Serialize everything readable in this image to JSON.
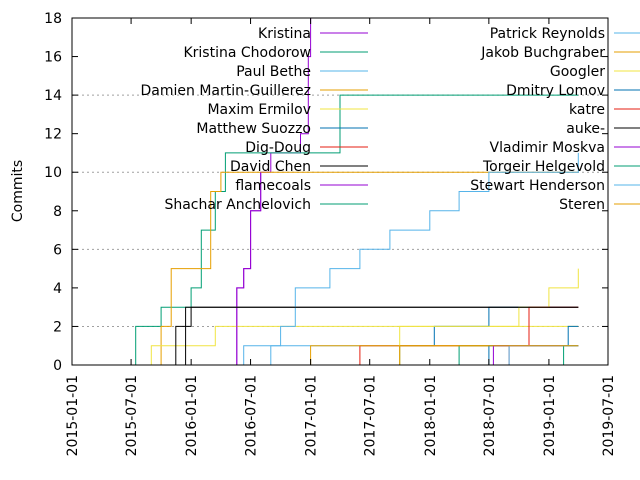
{
  "chart_data": {
    "type": "line",
    "title": "",
    "xlabel": "",
    "ylabel": "Commits",
    "x_type": "date",
    "xlim": [
      "2015-01-01",
      "2019-07-01"
    ],
    "ylim": [
      0,
      18
    ],
    "x_ticks": [
      "2015-01-01",
      "2015-07-01",
      "2016-01-01",
      "2016-07-01",
      "2017-01-01",
      "2017-07-01",
      "2018-01-01",
      "2018-07-01",
      "2019-01-01",
      "2019-07-01"
    ],
    "y_ticks": [
      0,
      2,
      4,
      6,
      8,
      10,
      12,
      14,
      16,
      18
    ],
    "grid": "horizontal dotted lines at 2, 6, 10, 14",
    "legend": "top, two columns",
    "series": [
      {
        "name": "Kristina",
        "color": "#9400d3",
        "x": [
          "2016-05-01",
          "2016-05-20",
          "2016-06-10",
          "2016-07-01",
          "2016-08-01",
          "2016-09-01",
          "2016-10-15",
          "2016-12-01",
          "2016-12-25",
          "2017-01-01"
        ],
        "y": [
          0,
          4,
          5,
          8,
          10,
          11,
          11,
          12,
          16,
          18
        ]
      },
      {
        "name": "Kristina Chodorow",
        "color": "#009e73",
        "x": [
          "2015-07-01",
          "2015-07-15",
          "2015-09-20",
          "2015-10-01",
          "2016-01-01",
          "2016-02-01",
          "2016-03-15",
          "2016-04-15",
          "2016-12-01",
          "2017-04-01",
          "2019-04-01"
        ],
        "y": [
          0,
          2,
          2,
          3,
          4,
          7,
          9,
          11,
          11,
          14,
          14
        ]
      },
      {
        "name": "Paul Bethe",
        "color": "#56b4e9",
        "x": [
          "2016-06-01",
          "2016-06-10",
          "2019-04-01"
        ],
        "y": [
          0,
          1,
          1
        ]
      },
      {
        "name": "Damien Martin-Guillerez",
        "color": "#e69f00",
        "x": [
          "2015-07-01",
          "2015-10-01",
          "2015-11-01",
          "2016-02-01",
          "2016-03-01",
          "2016-04-01",
          "2019-04-01"
        ],
        "y": [
          0,
          2,
          5,
          5,
          9,
          10,
          10
        ]
      },
      {
        "name": "Maxim Ermilov",
        "color": "#f0e442",
        "x": [
          "2015-07-15",
          "2015-09-01",
          "2016-03-01",
          "2016-03-15",
          "2019-04-01"
        ],
        "y": [
          0,
          1,
          1,
          2,
          2
        ]
      },
      {
        "name": "Matthew Suozzo",
        "color": "#0072b2",
        "x": [
          "2017-06-01",
          "2017-10-01",
          "2017-12-15",
          "2018-01-15",
          "2018-07-01",
          "2019-04-01"
        ],
        "y": [
          0,
          1,
          1,
          2,
          3,
          3
        ]
      },
      {
        "name": "Dig-Doug",
        "color": "#e51e10",
        "x": [
          "2017-05-01",
          "2017-06-01",
          "2017-07-01",
          "2019-04-01"
        ],
        "y": [
          0,
          1,
          1,
          1
        ]
      },
      {
        "name": "David Chen",
        "color": "#000000",
        "x": [
          "2015-10-01",
          "2015-11-15",
          "2016-01-01",
          "2016-04-01",
          "2019-04-01"
        ],
        "y": [
          0,
          2,
          3,
          3,
          3
        ]
      },
      {
        "name": "flamecoals",
        "color": "#9400d3",
        "x": [
          "2016-05-01",
          "2016-05-20",
          "2016-06-10",
          "2016-07-01",
          "2016-08-01"
        ],
        "y": [
          0,
          4,
          5,
          8,
          10
        ]
      },
      {
        "name": "Shachar Anchelovich",
        "color": "#009e73",
        "x": [
          "2018-03-01",
          "2018-04-01",
          "2019-04-01"
        ],
        "y": [
          0,
          1,
          1
        ]
      },
      {
        "name": "Patrick Reynolds",
        "color": "#56b4e9",
        "x": [
          "2016-07-01",
          "2016-09-01",
          "2016-10-01",
          "2016-11-15",
          "2017-03-01",
          "2017-06-01",
          "2017-09-01",
          "2018-01-01",
          "2018-04-01",
          "2018-07-01",
          "2019-01-01",
          "2019-04-01"
        ],
        "y": [
          0,
          1,
          2,
          4,
          5,
          6,
          7,
          8,
          9,
          10,
          10,
          11
        ]
      },
      {
        "name": "Jakob Buchgraber",
        "color": "#e69f00",
        "x": [
          "2016-12-01",
          "2017-01-01",
          "2019-04-01"
        ],
        "y": [
          0,
          1,
          1
        ]
      },
      {
        "name": "Googler",
        "color": "#f0e442",
        "x": [
          "2017-08-01",
          "2017-10-01",
          "2018-10-01",
          "2019-01-01",
          "2019-04-01"
        ],
        "y": [
          0,
          2,
          3,
          4,
          5
        ]
      },
      {
        "name": "Dmitry Lomov",
        "color": "#0072b2",
        "x": [
          "2018-03-01",
          "2018-07-01",
          "2018-09-01",
          "2019-01-01",
          "2019-03-01",
          "2019-04-01"
        ],
        "y": [
          0,
          1,
          1,
          1,
          2,
          2
        ]
      },
      {
        "name": "katre",
        "color": "#e51e10",
        "x": [
          "2018-08-01",
          "2018-09-01",
          "2018-11-01",
          "2019-04-01"
        ],
        "y": [
          0,
          1,
          3,
          3
        ]
      },
      {
        "name": "auke-",
        "color": "#000000",
        "x": [
          "2015-10-01",
          "2015-12-15",
          "2019-04-01"
        ],
        "y": [
          0,
          3,
          3
        ]
      },
      {
        "name": "Vladimir Moskva",
        "color": "#9400d3",
        "x": [
          "2018-07-01",
          "2018-07-15",
          "2019-04-01"
        ],
        "y": [
          0,
          1,
          1
        ]
      },
      {
        "name": "Torgeir Helgevold",
        "color": "#009e73",
        "x": [
          "2019-01-01",
          "2019-02-15",
          "2019-04-01"
        ],
        "y": [
          0,
          1,
          1
        ]
      },
      {
        "name": "Stewart Henderson",
        "color": "#56b4e9",
        "x": [
          "2018-07-15",
          "2018-09-01",
          "2019-04-01"
        ],
        "y": [
          0,
          1,
          1
        ]
      },
      {
        "name": "Steren",
        "color": "#e69f00",
        "x": [
          "2017-09-01",
          "2017-10-01",
          "2019-04-01"
        ],
        "y": [
          0,
          1,
          1
        ]
      }
    ]
  }
}
